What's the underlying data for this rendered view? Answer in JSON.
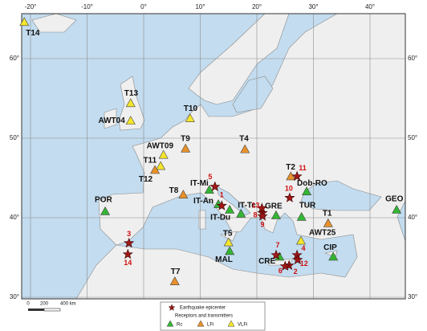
{
  "axes": {
    "lon_ticks": [
      {
        "value": -20,
        "label": "-20°"
      },
      {
        "value": -10,
        "label": "-10°"
      },
      {
        "value": 0,
        "label": "0°"
      },
      {
        "value": 10,
        "label": "10°"
      },
      {
        "value": 20,
        "label": "20°"
      },
      {
        "value": 30,
        "label": "30°"
      },
      {
        "value": 40,
        "label": "40°"
      }
    ],
    "lat_ticks": [
      {
        "value": 60,
        "label": "60°"
      },
      {
        "value": 50,
        "label": "50°"
      },
      {
        "value": 40,
        "label": "40°"
      },
      {
        "value": 30,
        "label": "30°"
      }
    ]
  },
  "stations": [
    {
      "label": "T14",
      "kind": 2,
      "lon": -21.1,
      "lat": 64.6
    },
    {
      "label": "T13",
      "kind": 2,
      "lon": -2.3,
      "lat": 54.4
    },
    {
      "label": "AWT04",
      "kind": 2,
      "lon": -2.3,
      "lat": 52.2
    },
    {
      "label": "T10",
      "kind": 2,
      "lon": 8.2,
      "lat": 52.5
    },
    {
      "label": "T9",
      "kind": 1,
      "lon": 7.4,
      "lat": 48.7
    },
    {
      "label": "AWT09",
      "kind": 2,
      "lon": 3.5,
      "lat": 47.9
    },
    {
      "label": "T11",
      "kind": 2,
      "lon": 3.0,
      "lat": 46.5
    },
    {
      "label": "T12",
      "kind": 1,
      "lon": 2.0,
      "lat": 46.0
    },
    {
      "label": "T4",
      "kind": 1,
      "lon": 17.9,
      "lat": 48.6
    },
    {
      "label": "T2",
      "kind": 1,
      "lon": 26.0,
      "lat": 45.2
    },
    {
      "label": "Dob-RO",
      "kind": 0,
      "lon": 28.8,
      "lat": 43.3
    },
    {
      "label": "IT-Mi",
      "kind": 0,
      "lon": 11.6,
      "lat": 43.5
    },
    {
      "label": "IT-An",
      "kind": 0,
      "lon": 13.2,
      "lat": 41.7
    },
    {
      "label": "IT-Du",
      "kind": 0,
      "lon": 15.2,
      "lat": 41.0
    },
    {
      "label": "IT-Tc",
      "kind": 0,
      "lon": 17.2,
      "lat": 40.5
    },
    {
      "label": "T8",
      "kind": 1,
      "lon": 7.0,
      "lat": 42.9
    },
    {
      "label": "GRE",
      "kind": 0,
      "lon": 23.4,
      "lat": 40.3
    },
    {
      "label": "TUR",
      "kind": 0,
      "lon": 27.9,
      "lat": 40.1
    },
    {
      "label": "T1",
      "kind": 1,
      "lon": 32.6,
      "lat": 39.3
    },
    {
      "label": "GEO",
      "kind": 0,
      "lon": 44.7,
      "lat": 41.0
    },
    {
      "label": "POR",
      "kind": 0,
      "lon": -6.8,
      "lat": 40.8
    },
    {
      "label": "T5",
      "kind": 2,
      "lon": 15.0,
      "lat": 36.9
    },
    {
      "label": "AWT25",
      "kind": 2,
      "lon": 27.8,
      "lat": 37.1
    },
    {
      "label": "MAL",
      "kind": 0,
      "lon": 15.2,
      "lat": 35.8
    },
    {
      "label": "CRE",
      "kind": 0,
      "lon": 24.0,
      "lat": 35.1
    },
    {
      "label": "CIP",
      "kind": 0,
      "lon": 33.5,
      "lat": 35.1
    },
    {
      "label": "T7",
      "kind": 1,
      "lon": 5.5,
      "lat": 32.0
    }
  ],
  "epicenters": [
    {
      "label": "1",
      "lon": 13.8,
      "lat": 41.5
    },
    {
      "label": "2",
      "lon": 25.7,
      "lat": 34.0
    },
    {
      "label": "3",
      "lon": -2.6,
      "lat": 36.8
    },
    {
      "label": "4",
      "lon": 27.1,
      "lat": 35.3
    },
    {
      "label": "5",
      "lon": 12.6,
      "lat": 43.9
    },
    {
      "label": "6",
      "lon": 25.0,
      "lat": 33.9
    },
    {
      "label": "7",
      "lon": 23.4,
      "lat": 35.3
    },
    {
      "label": "8",
      "lon": 21.0,
      "lat": 40.6
    },
    {
      "label": "9",
      "lon": 21.0,
      "lat": 40.2
    },
    {
      "label": "10",
      "lon": 25.8,
      "lat": 42.5
    },
    {
      "label": "11",
      "lon": 27.1,
      "lat": 45.2
    },
    {
      "label": "12",
      "lon": 27.2,
      "lat": 34.7
    },
    {
      "label": "13",
      "lon": 20.9,
      "lat": 41.2
    },
    {
      "label": "14",
      "lon": -2.8,
      "lat": 35.4
    }
  ],
  "legend": {
    "epicenter": "Earthquake epicenter",
    "group": "Receptors and transmitters",
    "kinds": [
      {
        "label": "Rc",
        "color": "#33b633"
      },
      {
        "label": "LFi",
        "color": "#e8912a"
      },
      {
        "label": "VLFi",
        "color": "#f4e62c"
      }
    ]
  },
  "scale": {
    "labels": [
      "0",
      "200",
      "400 km"
    ]
  }
}
